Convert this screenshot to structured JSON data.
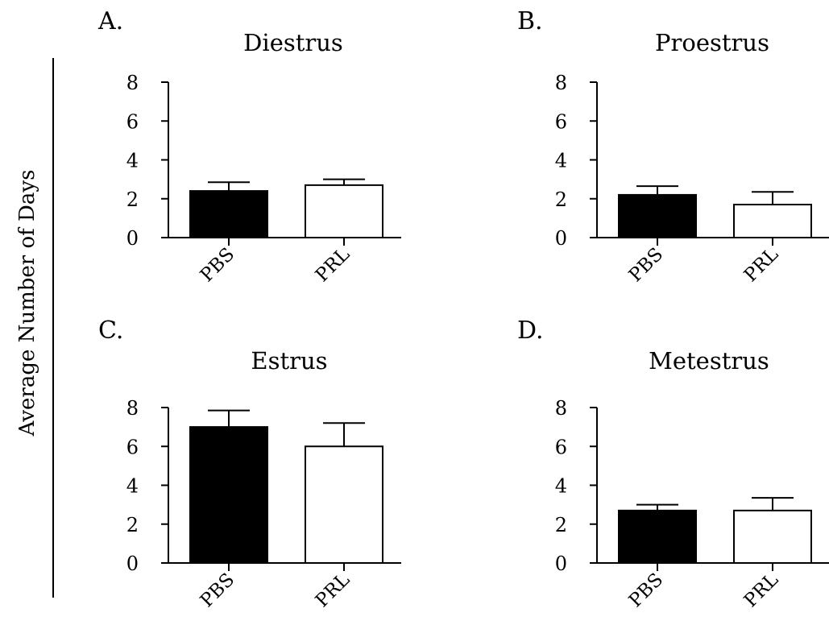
{
  "figure": {
    "ylabel": "Average Number of Days"
  },
  "colors": {
    "PBS": "#000000",
    "PRL": "#ffffff",
    "axis": "#000000"
  },
  "chart_data": [
    {
      "type": "bar",
      "panel": "A.",
      "title": "Diestrus",
      "categories": [
        "PBS",
        "PRL"
      ],
      "values": [
        2.4,
        2.7
      ],
      "errors": [
        0.45,
        0.3
      ],
      "yticks": [
        "0",
        "2",
        "4",
        "6",
        "8"
      ],
      "ylim": [
        0,
        8
      ],
      "grid": false
    },
    {
      "type": "bar",
      "panel": "B.",
      "title": "Proestrus",
      "categories": [
        "PBS",
        "PRL"
      ],
      "values": [
        2.2,
        1.7
      ],
      "errors": [
        0.45,
        0.65
      ],
      "yticks": [
        "0",
        "2",
        "4",
        "6",
        "8"
      ],
      "ylim": [
        0,
        8
      ],
      "grid": false
    },
    {
      "type": "bar",
      "panel": "C.",
      "title": "Estrus",
      "categories": [
        "PBS",
        "PRL"
      ],
      "values": [
        7.0,
        6.0
      ],
      "errors": [
        0.85,
        1.2
      ],
      "yticks": [
        "0",
        "2",
        "4",
        "6",
        "8"
      ],
      "ylim": [
        0,
        8
      ],
      "grid": false
    },
    {
      "type": "bar",
      "panel": "D.",
      "title": "Metestrus",
      "categories": [
        "PBS",
        "PRL"
      ],
      "values": [
        2.7,
        2.7
      ],
      "errors": [
        0.3,
        0.65
      ],
      "yticks": [
        "0",
        "2",
        "4",
        "6",
        "8"
      ],
      "ylim": [
        0,
        8
      ],
      "grid": false
    }
  ]
}
